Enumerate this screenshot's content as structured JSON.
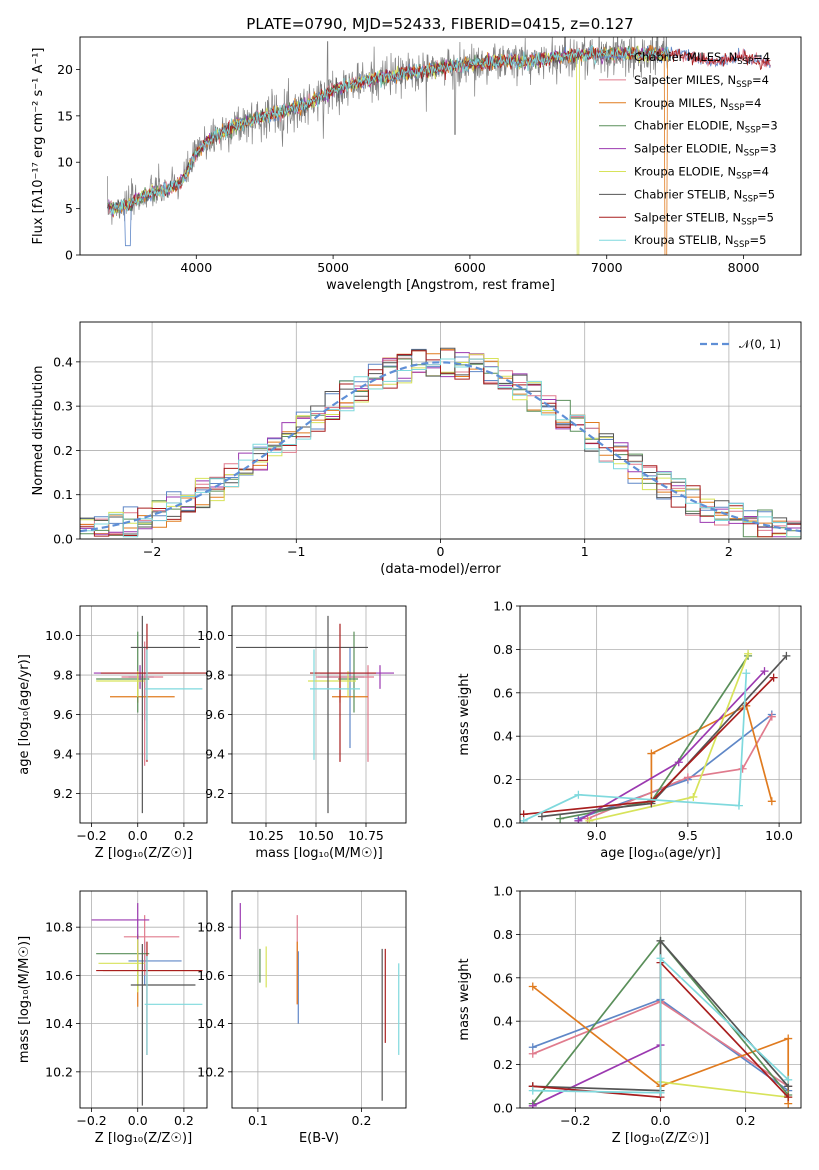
{
  "figure": {
    "title": "PLATE=0790, MJD=52433, FIBERID=0415, z=0.127"
  },
  "chart_data": [
    {
      "id": "spectrum",
      "type": "line",
      "xlabel": "wavelength [Angstrom, rest frame]",
      "ylabel": "Flux [fλ10⁻¹⁷ erg cm⁻² s⁻¹ A⁻¹]",
      "xlim": [
        3150,
        8420
      ],
      "ylim": [
        0,
        23.5
      ],
      "xticks": [
        4000,
        5000,
        6000,
        7000,
        8000
      ],
      "yticks": [
        0,
        5,
        10,
        15,
        20
      ],
      "grid": false,
      "legend_position": "top-right",
      "data_points": [
        [
          3350,
          5.0
        ],
        [
          3500,
          5.4
        ],
        [
          3600,
          6.3
        ],
        [
          3700,
          6.8
        ],
        [
          3800,
          7.1
        ],
        [
          3900,
          8.0
        ],
        [
          4000,
          11.0
        ],
        [
          4100,
          12.5
        ],
        [
          4300,
          14.0
        ],
        [
          4500,
          15.0
        ],
        [
          4800,
          16.2
        ],
        [
          5000,
          17.8
        ],
        [
          5300,
          19.0
        ],
        [
          5600,
          19.7
        ],
        [
          5900,
          20.4
        ],
        [
          6200,
          20.8
        ],
        [
          6500,
          21.0
        ],
        [
          6800,
          21.6
        ],
        [
          7000,
          21.6
        ],
        [
          7200,
          21.7
        ],
        [
          7500,
          21.7
        ],
        [
          7800,
          20.8
        ],
        [
          8000,
          21.5
        ],
        [
          8200,
          20.6
        ]
      ],
      "series": [
        {
          "name": "Chabrier MILES, N",
          "sub": "SSP",
          "suffix": "=4",
          "color": "#5f87c7"
        },
        {
          "name": "Salpeter MILES, N",
          "sub": "SSP",
          "suffix": "=4",
          "color": "#e07b8d"
        },
        {
          "name": "Kroupa MILES, N",
          "sub": "SSP",
          "suffix": "=4",
          "color": "#e07b1f"
        },
        {
          "name": "Chabrier ELODIE, N",
          "sub": "SSP",
          "suffix": "=3",
          "color": "#5a8f5a"
        },
        {
          "name": "Salpeter ELODIE, N",
          "sub": "SSP",
          "suffix": "=3",
          "color": "#9b39b0"
        },
        {
          "name": "Kroupa ELODIE, N",
          "sub": "SSP",
          "suffix": "=4",
          "color": "#d7e35a"
        },
        {
          "name": "Chabrier STELIB, N",
          "sub": "SSP",
          "suffix": "=5",
          "color": "#555555"
        },
        {
          "name": "Salpeter STELIB, N",
          "sub": "SSP",
          "suffix": "=5",
          "color": "#a81e1e"
        },
        {
          "name": "Kroupa STELIB, N",
          "sub": "SSP",
          "suffix": "=5",
          "color": "#7fd9dd"
        }
      ],
      "data_color": "#808080"
    },
    {
      "id": "residuals",
      "type": "area",
      "xlabel": "(data-model)/error",
      "ylabel": "Normed distribution",
      "xlim": [
        -2.5,
        2.5
      ],
      "ylim": [
        0,
        0.49
      ],
      "xticks": [
        -2,
        -1,
        0,
        1,
        2
      ],
      "yticks": [
        0.0,
        0.1,
        0.2,
        0.3,
        0.4
      ],
      "grid": true,
      "legend_position": "top-right",
      "legend_label": "𝒩(0, 1)",
      "gaussian_color": "#5f8fd6",
      "bin_edges": [
        -2.5,
        2.5
      ],
      "bin_width": 0.1,
      "hist_colors": [
        "#5f87c7",
        "#e07b8d",
        "#e07b1f",
        "#5a8f5a",
        "#9b39b0",
        "#d7e35a",
        "#555555",
        "#a81e1e",
        "#7fd9dd"
      ]
    },
    {
      "id": "age_vs_z",
      "type": "scatter",
      "xlabel": "Z [log₁₀(Z/Z☉)]",
      "ylabel": "age  [log₁₀(age/yr)]",
      "xlim": [
        -0.25,
        0.3
      ],
      "ylim": [
        9.05,
        10.15
      ],
      "xticks": [
        -0.2,
        0.0,
        0.2
      ],
      "yticks": [
        9.2,
        9.4,
        9.6,
        9.8,
        10.0
      ],
      "grid": true,
      "points": [
        {
          "x": 0.03,
          "y": 9.79,
          "xerr": [
            0.07,
            0.04
          ],
          "yerr": [
            0.22,
            0.15
          ],
          "color": "#5f87c7"
        },
        {
          "x": 0.03,
          "y": 9.79,
          "xerr": [
            0.1,
            0.08
          ],
          "yerr": [
            0.45,
            0.18
          ],
          "color": "#e07b8d"
        },
        {
          "x": 0.0,
          "y": 9.69,
          "xerr": [
            0.12,
            0.16
          ],
          "yerr": [
            0.03,
            0.1
          ],
          "color": "#e07b1f"
        },
        {
          "x": 0.0,
          "y": 9.78,
          "xerr": [
            0.18,
            0.05
          ],
          "yerr": [
            0.17,
            0.24
          ],
          "color": "#5a8f5a"
        },
        {
          "x": 0.01,
          "y": 9.81,
          "xerr": [
            0.2,
            0.03
          ],
          "yerr": [
            0.08,
            0.04
          ],
          "color": "#9b39b0"
        },
        {
          "x": 0.0,
          "y": 9.77,
          "xerr": [
            0.18,
            0.03
          ],
          "yerr": [
            0.08,
            0.05
          ],
          "color": "#d7e35a"
        },
        {
          "x": 0.02,
          "y": 9.94,
          "xerr": [
            0.05,
            0.25
          ],
          "yerr": [
            0.84,
            0.16
          ],
          "color": "#555555"
        },
        {
          "x": 0.04,
          "y": 9.81,
          "xerr": [
            0.2,
            0.27
          ],
          "yerr": [
            0.45,
            0.25
          ],
          "color": "#a81e1e"
        },
        {
          "x": 0.04,
          "y": 9.73,
          "xerr": [
            0.01,
            0.24
          ],
          "yerr": [
            0.36,
            0.2
          ],
          "color": "#7fd9dd"
        }
      ]
    },
    {
      "id": "age_vs_mass",
      "type": "scatter",
      "xlabel": "mass [log₁₀(M/M☉)]",
      "ylabel": "",
      "xlim": [
        10.08,
        10.95
      ],
      "ylim": [
        9.05,
        10.15
      ],
      "xticks": [
        10.25,
        10.5,
        10.75
      ],
      "tick_labels": [
        "10.25",
        "10.50",
        "10.75"
      ],
      "yticks": [
        9.2,
        9.4,
        9.6,
        9.8,
        10.0
      ],
      "grid": true,
      "points": [
        {
          "x": 10.67,
          "y": 9.79,
          "xerr": [
            0.16,
            0.07
          ],
          "yerr": [
            0.36,
            0.15
          ],
          "color": "#5f87c7"
        },
        {
          "x": 10.76,
          "y": 9.79,
          "xerr": [
            0.26,
            0.03
          ],
          "yerr": [
            0.43,
            0.06
          ],
          "color": "#e07b8d"
        },
        {
          "x": 10.62,
          "y": 9.69,
          "xerr": [
            0.04,
            0.14
          ],
          "yerr": [
            0.03,
            0.1
          ],
          "color": "#e07b1f"
        },
        {
          "x": 10.69,
          "y": 9.78,
          "xerr": [
            0.08,
            0.02
          ],
          "yerr": [
            0.17,
            0.24
          ],
          "color": "#5a8f5a"
        },
        {
          "x": 10.82,
          "y": 9.81,
          "xerr": [
            0.3,
            0.07
          ],
          "yerr": [
            0.08,
            0.04
          ],
          "color": "#9b39b0"
        },
        {
          "x": 10.66,
          "y": 9.77,
          "xerr": [
            0.2,
            0.04
          ],
          "yerr": [
            0.08,
            0.05
          ],
          "color": "#d7e35a"
        },
        {
          "x": 10.56,
          "y": 9.94,
          "xerr": [
            0.46,
            0.2
          ],
          "yerr": [
            0.84,
            0.16
          ],
          "color": "#555555"
        },
        {
          "x": 10.62,
          "y": 9.81,
          "xerr": [
            0.15,
            0.18
          ],
          "yerr": [
            0.45,
            0.25
          ],
          "color": "#a81e1e"
        },
        {
          "x": 10.49,
          "y": 9.73,
          "xerr": [
            0.02,
            0.23
          ],
          "yerr": [
            0.36,
            0.2
          ],
          "color": "#7fd9dd"
        }
      ]
    },
    {
      "id": "weight_vs_age",
      "type": "line",
      "xlabel": "age  [log₁₀(age/yr)]",
      "ylabel": "mass weight",
      "xlim": [
        8.58,
        10.12
      ],
      "ylim": [
        0,
        1.0
      ],
      "xticks": [
        9.0,
        9.5,
        10.0
      ],
      "yticks": [
        0.0,
        0.2,
        0.4,
        0.6,
        0.8,
        1.0
      ],
      "grid": true,
      "series": [
        {
          "color": "#5f87c7",
          "points": [
            [
              8.9,
              0.02
            ],
            [
              9.5,
              0.2
            ],
            [
              9.96,
              0.5
            ]
          ]
        },
        {
          "color": "#e07b8d",
          "points": [
            [
              8.95,
              0.02
            ],
            [
              9.5,
              0.21
            ],
            [
              9.8,
              0.25
            ],
            [
              9.96,
              0.49
            ]
          ]
        },
        {
          "color": "#e07b1f",
          "points": [
            [
              9.3,
              0.09
            ],
            [
              9.3,
              0.32
            ],
            [
              9.82,
              0.54
            ],
            [
              9.96,
              0.1
            ]
          ]
        },
        {
          "color": "#5a8f5a",
          "points": [
            [
              8.8,
              0.02
            ],
            [
              9.3,
              0.1
            ],
            [
              9.83,
              0.77
            ]
          ]
        },
        {
          "color": "#9b39b0",
          "points": [
            [
              8.9,
              0.01
            ],
            [
              9.45,
              0.28
            ],
            [
              9.92,
              0.7
            ]
          ]
        },
        {
          "color": "#d7e35a",
          "points": [
            [
              8.96,
              0.01
            ],
            [
              9.53,
              0.12
            ],
            [
              9.83,
              0.78
            ]
          ]
        },
        {
          "color": "#555555",
          "points": [
            [
              8.7,
              0.03
            ],
            [
              9.3,
              0.09
            ],
            [
              10.04,
              0.77
            ]
          ]
        },
        {
          "color": "#a81e1e",
          "points": [
            [
              8.6,
              0.04
            ],
            [
              9.3,
              0.1
            ],
            [
              9.97,
              0.67
            ]
          ]
        },
        {
          "color": "#7fd9dd",
          "points": [
            [
              8.6,
              0.01
            ],
            [
              8.9,
              0.13
            ],
            [
              9.78,
              0.08
            ],
            [
              9.82,
              0.69
            ]
          ]
        }
      ]
    },
    {
      "id": "mass_vs_z",
      "type": "scatter",
      "xlabel": "Z [log₁₀(Z/Z☉)]",
      "ylabel": "mass [log₁₀(M/M☉)]",
      "xlim": [
        -0.25,
        0.3
      ],
      "ylim": [
        10.05,
        10.95
      ],
      "xticks": [
        -0.2,
        0.0,
        0.2
      ],
      "yticks": [
        10.2,
        10.4,
        10.6,
        10.8
      ],
      "grid": true,
      "points": [
        {
          "x": 0.03,
          "y": 10.66,
          "xerr": [
            0.07,
            0.16
          ],
          "yerr": [
            0.1,
            0.08
          ],
          "color": "#5f87c7"
        },
        {
          "x": 0.03,
          "y": 10.76,
          "xerr": [
            0.09,
            0.15
          ],
          "yerr": [
            0.16,
            0.09
          ],
          "color": "#e07b8d"
        },
        {
          "x": 0.0,
          "y": 10.62,
          "xerr": [
            0.15,
            0.28
          ],
          "yerr": [
            0.15,
            0.12
          ],
          "color": "#e07b1f"
        },
        {
          "x": 0.0,
          "y": 10.69,
          "xerr": [
            0.18,
            0.05
          ],
          "yerr": [
            0.15,
            0.08
          ],
          "color": "#5a8f5a"
        },
        {
          "x": 0.0,
          "y": 10.83,
          "xerr": [
            0.2,
            0.05
          ],
          "yerr": [
            0.17,
            0.07
          ],
          "color": "#9b39b0"
        },
        {
          "x": 0.0,
          "y": 10.65,
          "xerr": [
            0.17,
            0.03
          ],
          "yerr": [
            0.12,
            0.1
          ],
          "color": "#d7e35a"
        },
        {
          "x": 0.02,
          "y": 10.56,
          "xerr": [
            0.05,
            0.23
          ],
          "yerr": [
            0.5,
            0.17
          ],
          "color": "#555555"
        },
        {
          "x": 0.04,
          "y": 10.62,
          "xerr": [
            0.22,
            0.24
          ],
          "yerr": [
            0.35,
            0.12
          ],
          "color": "#a81e1e"
        },
        {
          "x": 0.04,
          "y": 10.48,
          "xerr": [
            0.01,
            0.24
          ],
          "yerr": [
            0.21,
            0.2
          ],
          "color": "#7fd9dd"
        }
      ]
    },
    {
      "id": "mass_vs_ebv",
      "type": "scatter",
      "xlabel": "E(B-V)",
      "ylabel": "",
      "xlim": [
        0.075,
        0.243
      ],
      "ylim": [
        10.05,
        10.95
      ],
      "xticks": [
        0.1,
        0.2
      ],
      "yticks": [
        10.2,
        10.4,
        10.6,
        10.8
      ],
      "grid": true,
      "points": [
        {
          "x": 0.139,
          "y": 10.62,
          "yerr": [
            0.22,
            0.08
          ],
          "color": "#5f87c7"
        },
        {
          "x": 0.138,
          "y": 10.72,
          "yerr": [
            0.24,
            0.13
          ],
          "color": "#e07b8d"
        },
        {
          "x": 0.138,
          "y": 10.62,
          "yerr": [
            0.14,
            0.12
          ],
          "color": "#e07b1f"
        },
        {
          "x": 0.102,
          "y": 10.63,
          "yerr": [
            0.06,
            0.08
          ],
          "color": "#5a8f5a"
        },
        {
          "x": 0.083,
          "y": 10.83,
          "yerr": [
            0.08,
            0.07
          ],
          "color": "#9b39b0"
        },
        {
          "x": 0.108,
          "y": 10.63,
          "yerr": [
            0.08,
            0.09
          ],
          "color": "#d7e35a"
        },
        {
          "x": 0.22,
          "y": 10.48,
          "yerr": [
            0.4,
            0.23
          ],
          "color": "#555555"
        },
        {
          "x": 0.223,
          "y": 10.62,
          "yerr": [
            0.3,
            0.09
          ],
          "color": "#a81e1e"
        },
        {
          "x": 0.236,
          "y": 10.45,
          "yerr": [
            0.18,
            0.2
          ],
          "color": "#7fd9dd"
        }
      ]
    },
    {
      "id": "weight_vs_z",
      "type": "line",
      "xlabel": "Z [log₁₀(Z/Z☉)]",
      "ylabel": "mass weight",
      "xlim": [
        -0.33,
        0.33
      ],
      "ylim": [
        0,
        1.0
      ],
      "xticks": [
        -0.2,
        0.0,
        0.2
      ],
      "yticks": [
        0.0,
        0.2,
        0.4,
        0.6,
        0.8,
        1.0
      ],
      "grid": true,
      "series": [
        {
          "color": "#5f87c7",
          "points": [
            [
              -0.3,
              0.28
            ],
            [
              0.0,
              0.5
            ],
            [
              0.3,
              0.08
            ]
          ]
        },
        {
          "color": "#e07b8d",
          "points": [
            [
              -0.3,
              0.25
            ],
            [
              0.0,
              0.49
            ],
            [
              0.3,
              0.1
            ]
          ]
        },
        {
          "color": "#e07b1f",
          "points": [
            [
              -0.3,
              0.56
            ],
            [
              0.0,
              0.1
            ],
            [
              0.3,
              0.32
            ],
            [
              0.3,
              0.02
            ]
          ]
        },
        {
          "color": "#5a8f5a",
          "points": [
            [
              -0.3,
              0.02
            ],
            [
              0.0,
              0.77
            ],
            [
              0.3,
              0.06
            ]
          ]
        },
        {
          "color": "#9b39b0",
          "points": [
            [
              -0.3,
              0.01
            ],
            [
              0.0,
              0.29
            ]
          ]
        },
        {
          "color": "#d7e35a",
          "points": [
            [
              0.0,
              0.12
            ],
            [
              0.3,
              0.05
            ]
          ]
        },
        {
          "color": "#555555",
          "points": [
            [
              -0.3,
              0.1
            ],
            [
              0.0,
              0.08
            ],
            [
              0.0,
              0.77
            ],
            [
              0.3,
              0.1
            ]
          ]
        },
        {
          "color": "#a81e1e",
          "points": [
            [
              -0.3,
              0.1
            ],
            [
              0.0,
              0.05
            ],
            [
              0.0,
              0.67
            ],
            [
              0.3,
              0.05
            ]
          ]
        },
        {
          "color": "#7fd9dd",
          "points": [
            [
              -0.3,
              0.08
            ],
            [
              0.0,
              0.07
            ],
            [
              0.0,
              0.69
            ],
            [
              0.3,
              0.13
            ]
          ]
        }
      ]
    }
  ]
}
